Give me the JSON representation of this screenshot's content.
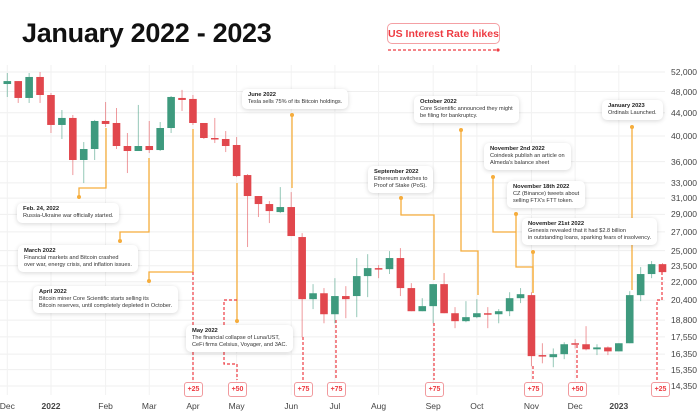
{
  "chart_data": {
    "type": "candlestick",
    "title": "January 2022 - 2023",
    "interval": "weekly",
    "y_scale": "log",
    "ylim": [
      14350,
      52000
    ],
    "grid": true,
    "colors": {
      "up": "#3e9a7e",
      "down": "#e1474d",
      "annotation": "#f6ad3c",
      "rate_hike": "#ee3b42"
    },
    "y_ticks": [
      52000,
      48000,
      44000,
      40000,
      36000,
      33000,
      31000,
      29000,
      27000,
      25000,
      23500,
      22000,
      20400,
      18800,
      17550,
      16350,
      15350,
      14350
    ],
    "y_tick_labels": [
      "52,000",
      "48,000",
      "44,000",
      "40,000",
      "36,000",
      "33,000",
      "31,000",
      "29,000",
      "27,000",
      "25,000",
      "23,500",
      "22,000",
      "20,400",
      "18,800",
      "17,550",
      "16,350",
      "15,350",
      "14,350"
    ],
    "x_ticks": [
      {
        "label": "Dec",
        "week": 0
      },
      {
        "label": "2022",
        "week": 4
      },
      {
        "label": "Feb",
        "week": 9
      },
      {
        "label": "Mar",
        "week": 13
      },
      {
        "label": "Apr",
        "week": 17
      },
      {
        "label": "May",
        "week": 21
      },
      {
        "label": "Jun",
        "week": 26
      },
      {
        "label": "Jul",
        "week": 30
      },
      {
        "label": "Aug",
        "week": 34
      },
      {
        "label": "Sep",
        "week": 39
      },
      {
        "label": "Oct",
        "week": 43
      },
      {
        "label": "Nov",
        "week": 48
      },
      {
        "label": "Dec",
        "week": 52
      },
      {
        "label": "2023",
        "week": 56
      }
    ],
    "ohlc": [
      [
        49500,
        51790,
        46930,
        50100
      ],
      [
        50100,
        50100,
        45800,
        46750
      ],
      [
        46750,
        51790,
        45800,
        50950
      ],
      [
        50950,
        52000,
        45800,
        47320
      ],
      [
        47320,
        47710,
        40490,
        41850
      ],
      [
        41850,
        44500,
        39510,
        43070
      ],
      [
        43070,
        43600,
        34080,
        36250
      ],
      [
        36250,
        39020,
        32980,
        37920
      ],
      [
        37920,
        42720,
        36250,
        42540
      ],
      [
        42540,
        45980,
        41510,
        42020
      ],
      [
        42190,
        44870,
        37920,
        38390
      ],
      [
        38390,
        40490,
        34360,
        37610
      ],
      [
        37610,
        45430,
        37610,
        38390
      ],
      [
        38390,
        42540,
        37300,
        37760
      ],
      [
        37760,
        42360,
        37610,
        41330
      ],
      [
        41330,
        47130,
        40490,
        46940
      ],
      [
        46750,
        48320,
        44320,
        46370
      ],
      [
        46560,
        47320,
        41850,
        42190
      ],
      [
        42190,
        42190,
        39510,
        39670
      ],
      [
        39670,
        43070,
        38860,
        39510
      ],
      [
        39510,
        40820,
        37450,
        38390
      ],
      [
        38550,
        39830,
        33800,
        33940
      ],
      [
        34080,
        34220,
        25370,
        31270
      ],
      [
        31270,
        31270,
        28690,
        30260
      ],
      [
        30260,
        30630,
        27990,
        29400
      ],
      [
        29280,
        32440,
        29160,
        29890
      ],
      [
        29890,
        31780,
        26540,
        26540
      ],
      [
        26430,
        26860,
        17530,
        20490
      ],
      [
        20490,
        21790,
        19670,
        20990
      ],
      [
        20990,
        21440,
        18560,
        19260
      ],
      [
        19260,
        22330,
        18560,
        20750
      ],
      [
        20750,
        21610,
        18950,
        20490
      ],
      [
        20750,
        24250,
        19030,
        22520
      ],
      [
        22520,
        24640,
        20660,
        23270
      ],
      [
        23270,
        23560,
        22330,
        23170
      ],
      [
        23170,
        24950,
        22710,
        24250
      ],
      [
        24250,
        25260,
        20750,
        21440
      ],
      [
        21440,
        21880,
        19500,
        19500
      ],
      [
        19500,
        20570,
        19500,
        19910
      ],
      [
        19910,
        21790,
        18560,
        21790
      ],
      [
        21790,
        22800,
        19340,
        19340
      ],
      [
        19340,
        19830,
        18190,
        18720
      ],
      [
        18720,
        20320,
        18640,
        19030
      ],
      [
        19030,
        20490,
        18950,
        19340
      ],
      [
        19340,
        19830,
        18190,
        19260
      ],
      [
        19260,
        19670,
        18560,
        19500
      ],
      [
        19500,
        21080,
        19110,
        20570
      ],
      [
        20570,
        21440,
        20160,
        20910
      ],
      [
        20830,
        21080,
        15560,
        16220
      ],
      [
        16290,
        17100,
        15750,
        16220
      ],
      [
        16150,
        16740,
        15500,
        16350
      ],
      [
        16350,
        17170,
        16020,
        17030
      ],
      [
        17100,
        17390,
        16740,
        17030
      ],
      [
        17030,
        18340,
        16610,
        16680
      ],
      [
        16680,
        17030,
        16290,
        16810
      ],
      [
        16810,
        16880,
        16290,
        16540
      ],
      [
        16540,
        17100,
        16540,
        17100
      ],
      [
        17100,
        21170,
        17100,
        20830
      ],
      [
        20830,
        23370,
        20320,
        22710
      ],
      [
        22710,
        23950,
        22330,
        23650
      ],
      [
        23650,
        23750,
        22890,
        22890
      ]
    ],
    "legend": {
      "label": "US Interest Rate hikes",
      "placement": "top-center"
    },
    "rate_hikes": [
      "+25",
      "+50",
      "+75",
      "+75",
      "+75",
      "+75",
      "+50",
      "+25"
    ],
    "annotations": [
      {
        "title": "Feb. 24, 2022",
        "text": [
          "Russia-Ukraine war officially started."
        ]
      },
      {
        "title": "March 2022",
        "text": [
          "Financial markets and Bitcoin crashed",
          "over war, energy crisis, and inflation issues."
        ]
      },
      {
        "title": "April 2022",
        "text": [
          "Bitcoin miner Core Scientific starts selling its",
          "Bitcoin reserves, until completely depleted in October."
        ]
      },
      {
        "title": "May 2022",
        "text": [
          "The financial collapse of Luna/UST,",
          "CeFi firms Celsius, Voyager, and 3AC."
        ]
      },
      {
        "title": "June 2022",
        "text": [
          "Tesla sells 75% of its Bitcoin holdings."
        ]
      },
      {
        "title": "September 2022",
        "text": [
          "Ethereum switches to",
          "Proof of Stake (PoS)."
        ]
      },
      {
        "title": "October 2022",
        "text": [
          "Core Scientific announced they might",
          "be filing for bankruptcy."
        ]
      },
      {
        "title": "November 2nd 2022",
        "text": [
          "Coindesk publish an article on",
          "Almeda's balance sheet"
        ]
      },
      {
        "title": "November 18th 2022",
        "text": [
          "CZ (Binance) tweets about",
          "selling FTX's FTT token."
        ]
      },
      {
        "title": "November 21st 2022",
        "text": [
          "Genesis revealed that it had $2.8 billion",
          "in outstanding loans, sparking fears of insolvency."
        ]
      },
      {
        "title": "January 2023",
        "text": [
          "Ordinals Launched."
        ]
      }
    ]
  }
}
